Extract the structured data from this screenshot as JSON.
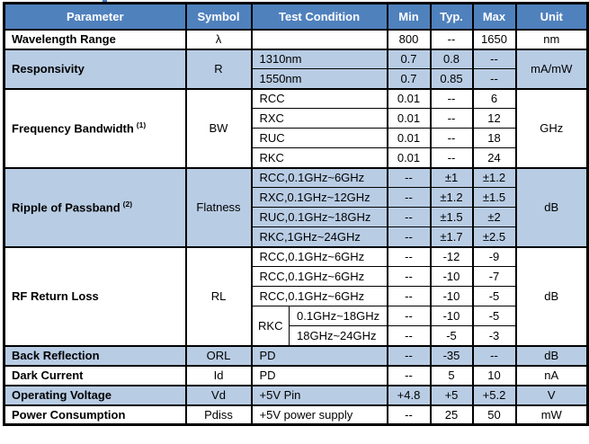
{
  "colors": {
    "header_bg": "#4f81bd",
    "header_text": "#ffffff",
    "shaded_row": "#b8cce4",
    "border": "#000000"
  },
  "table": {
    "headers": [
      "Parameter",
      "Symbol",
      "Test Condition",
      "Min",
      "Typ.",
      "Max",
      "Unit"
    ],
    "groups": [
      {
        "parameter": "Wavelength Range",
        "symbol": "λ",
        "unit": "nm",
        "shade": "white",
        "rows": [
          {
            "condition": "",
            "min": "800",
            "typ": "--",
            "max": "1650"
          }
        ]
      },
      {
        "parameter": "Responsivity",
        "symbol": "R",
        "unit": "mA/mW",
        "shade": "blue",
        "rows": [
          {
            "condition": "1310nm",
            "min": "0.7",
            "typ": "0.8",
            "max": "--"
          },
          {
            "condition": "1550nm",
            "min": "0.7",
            "typ": "0.85",
            "max": "--"
          }
        ]
      },
      {
        "parameter": "Frequency Bandwidth",
        "parameter_sup": "(1)",
        "symbol": "BW",
        "unit": "GHz",
        "shade": "white",
        "rows": [
          {
            "condition": "RCC",
            "min": "0.01",
            "typ": "--",
            "max": "6"
          },
          {
            "condition": "RXC",
            "min": "0.01",
            "typ": "--",
            "max": "12"
          },
          {
            "condition": "RUC",
            "min": "0.01",
            "typ": "--",
            "max": "18"
          },
          {
            "condition": "RKC",
            "min": "0.01",
            "typ": "--",
            "max": "24"
          }
        ]
      },
      {
        "parameter": "Ripple of Passband",
        "parameter_sup": "(2)",
        "symbol": "Flatness",
        "unit": "dB",
        "shade": "blue",
        "rows": [
          {
            "condition": "RCC,0.1GHz~6GHz",
            "min": "--",
            "typ": "±1",
            "max": "±1.2"
          },
          {
            "condition": "RXC,0.1GHz~12GHz",
            "min": "--",
            "typ": "±1.2",
            "max": "±1.5"
          },
          {
            "condition": "RUC,0.1GHz~18GHz",
            "min": "--",
            "typ": "±1.5",
            "max": "±2"
          },
          {
            "condition": "RKC,1GHz~24GHz",
            "min": "--",
            "typ": "±1.7",
            "max": "±2.5"
          }
        ]
      },
      {
        "parameter": "RF Return Loss",
        "symbol": "RL",
        "unit": "dB",
        "shade": "white",
        "rows": [
          {
            "condition": "RCC,0.1GHz~6GHz",
            "min": "--",
            "typ": "-12",
            "max": "-9"
          },
          {
            "condition": "RCC,0.1GHz~6GHz",
            "min": "--",
            "typ": "-10",
            "max": "-7"
          },
          {
            "condition": "RCC,0.1GHz~6GHz",
            "min": "--",
            "typ": "-10",
            "max": "-5"
          },
          {
            "condition_group": "RKC",
            "condition_sub": "0.1GHz~18GHz",
            "min": "--",
            "typ": "-10",
            "max": "-5"
          },
          {
            "condition_sub": "18GHz~24GHz",
            "min": "--",
            "typ": "-5",
            "max": "-3"
          }
        ]
      },
      {
        "parameter": "Back Reflection",
        "symbol": "ORL",
        "unit": "dB",
        "shade": "blue",
        "rows": [
          {
            "condition": "PD",
            "min": "--",
            "typ": "-35",
            "max": "--"
          }
        ]
      },
      {
        "parameter": "Dark Current",
        "symbol": "Id",
        "unit": "nA",
        "shade": "white",
        "rows": [
          {
            "condition": "PD",
            "min": "--",
            "typ": "5",
            "max": "10"
          }
        ]
      },
      {
        "parameter": "Operating Voltage",
        "symbol": "Vd",
        "unit": "V",
        "shade": "blue",
        "rows": [
          {
            "condition": "+5V Pin",
            "min": "+4.8",
            "typ": "+5",
            "max": "+5.2"
          }
        ]
      },
      {
        "parameter": "Power Consumption",
        "symbol": "Pdiss",
        "unit": "mW",
        "shade": "white",
        "rows": [
          {
            "condition": "+5V power supply",
            "min": "--",
            "typ": "25",
            "max": "50"
          }
        ]
      }
    ]
  }
}
